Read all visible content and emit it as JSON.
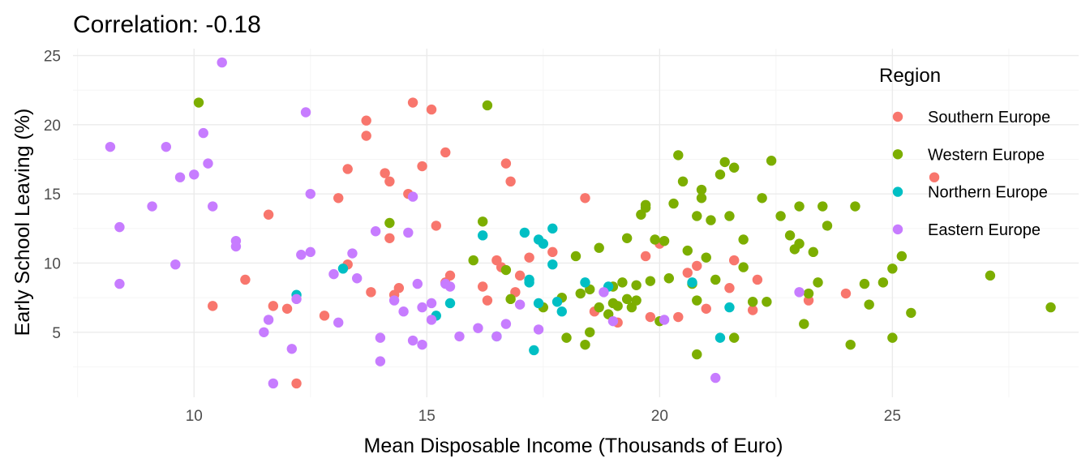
{
  "chart_data": {
    "type": "scatter",
    "title": "Correlation:  -0.18",
    "xlabel": "Mean Disposable Income (Thousands of Euro)",
    "ylabel": "Early School Leaving (%)",
    "xlim": [
      7.4,
      29.0
    ],
    "ylim": [
      0.3,
      25.5
    ],
    "x_ticks": [
      10,
      15,
      20,
      25
    ],
    "y_ticks": [
      5,
      10,
      15,
      20,
      25
    ],
    "grid": true,
    "legend": {
      "title": "Region",
      "position": "right"
    },
    "series": [
      {
        "name": "Southern Europe",
        "color": "#F8766D",
        "points": [
          [
            10.4,
            6.9
          ],
          [
            11.1,
            8.8
          ],
          [
            11.6,
            13.5
          ],
          [
            11.7,
            6.9
          ],
          [
            12.0,
            6.7
          ],
          [
            12.2,
            1.3
          ],
          [
            12.8,
            6.2
          ],
          [
            13.1,
            14.7
          ],
          [
            13.3,
            16.8
          ],
          [
            13.3,
            9.9
          ],
          [
            13.7,
            19.2
          ],
          [
            13.7,
            20.3
          ],
          [
            13.8,
            7.9
          ],
          [
            14.1,
            16.5
          ],
          [
            14.2,
            15.9
          ],
          [
            14.2,
            11.8
          ],
          [
            14.3,
            7.7
          ],
          [
            14.4,
            8.2
          ],
          [
            14.6,
            15.0
          ],
          [
            14.7,
            21.6
          ],
          [
            14.9,
            17.0
          ],
          [
            15.1,
            21.1
          ],
          [
            15.2,
            12.7
          ],
          [
            15.4,
            18.0
          ],
          [
            15.4,
            8.6
          ],
          [
            15.5,
            9.1
          ],
          [
            16.2,
            8.3
          ],
          [
            16.3,
            7.3
          ],
          [
            16.5,
            10.2
          ],
          [
            16.6,
            9.7
          ],
          [
            16.7,
            17.2
          ],
          [
            16.8,
            15.9
          ],
          [
            16.9,
            7.9
          ],
          [
            17.0,
            9.1
          ],
          [
            17.2,
            10.4
          ],
          [
            17.7,
            10.8
          ],
          [
            18.4,
            14.7
          ],
          [
            18.6,
            6.5
          ],
          [
            19.1,
            5.7
          ],
          [
            19.7,
            10.5
          ],
          [
            19.8,
            6.1
          ],
          [
            20.0,
            11.4
          ],
          [
            20.4,
            6.1
          ],
          [
            20.6,
            9.3
          ],
          [
            20.8,
            9.8
          ],
          [
            21.0,
            6.7
          ],
          [
            21.5,
            8.2
          ],
          [
            21.6,
            10.2
          ],
          [
            22.0,
            6.6
          ],
          [
            22.1,
            8.8
          ],
          [
            23.2,
            7.3
          ],
          [
            24.0,
            7.8
          ],
          [
            25.9,
            16.2
          ]
        ]
      },
      {
        "name": "Western Europe",
        "color": "#7CAE00",
        "points": [
          [
            10.1,
            21.6
          ],
          [
            14.2,
            12.9
          ],
          [
            16.3,
            21.4
          ],
          [
            16.0,
            10.2
          ],
          [
            16.2,
            13.0
          ],
          [
            16.7,
            9.5
          ],
          [
            16.8,
            7.4
          ],
          [
            17.5,
            6.8
          ],
          [
            17.9,
            7.5
          ],
          [
            18.0,
            4.6
          ],
          [
            18.2,
            10.5
          ],
          [
            18.3,
            7.8
          ],
          [
            18.4,
            4.1
          ],
          [
            18.5,
            5.0
          ],
          [
            18.5,
            8.1
          ],
          [
            18.7,
            11.1
          ],
          [
            18.7,
            6.8
          ],
          [
            18.9,
            6.3
          ],
          [
            19.0,
            7.1
          ],
          [
            19.0,
            8.3
          ],
          [
            19.1,
            6.9
          ],
          [
            19.2,
            8.6
          ],
          [
            19.3,
            11.8
          ],
          [
            19.3,
            7.4
          ],
          [
            19.4,
            6.8
          ],
          [
            19.5,
            8.4
          ],
          [
            19.5,
            7.3
          ],
          [
            19.6,
            13.5
          ],
          [
            19.7,
            14.2
          ],
          [
            19.7,
            14.0
          ],
          [
            19.8,
            8.7
          ],
          [
            19.9,
            11.7
          ],
          [
            20.0,
            5.8
          ],
          [
            20.1,
            11.6
          ],
          [
            20.2,
            8.9
          ],
          [
            20.3,
            14.3
          ],
          [
            20.4,
            17.8
          ],
          [
            20.5,
            15.9
          ],
          [
            20.6,
            10.9
          ],
          [
            20.7,
            8.5
          ],
          [
            20.8,
            3.4
          ],
          [
            20.8,
            13.4
          ],
          [
            20.8,
            7.3
          ],
          [
            20.9,
            15.3
          ],
          [
            20.9,
            14.7
          ],
          [
            21.0,
            10.4
          ],
          [
            21.1,
            13.1
          ],
          [
            21.2,
            8.8
          ],
          [
            21.3,
            16.4
          ],
          [
            21.4,
            17.3
          ],
          [
            21.5,
            13.4
          ],
          [
            21.6,
            16.9
          ],
          [
            21.6,
            4.6
          ],
          [
            21.8,
            9.7
          ],
          [
            21.8,
            11.7
          ],
          [
            22.0,
            7.2
          ],
          [
            22.2,
            14.7
          ],
          [
            22.3,
            7.2
          ],
          [
            22.4,
            17.4
          ],
          [
            22.6,
            13.4
          ],
          [
            22.8,
            12.0
          ],
          [
            22.9,
            11.0
          ],
          [
            23.0,
            11.4
          ],
          [
            23.0,
            14.1
          ],
          [
            23.1,
            5.6
          ],
          [
            23.2,
            7.8
          ],
          [
            23.3,
            10.8
          ],
          [
            23.4,
            8.6
          ],
          [
            23.5,
            14.1
          ],
          [
            23.6,
            12.7
          ],
          [
            24.1,
            4.1
          ],
          [
            24.2,
            14.1
          ],
          [
            24.4,
            8.5
          ],
          [
            24.5,
            7.0
          ],
          [
            24.8,
            8.6
          ],
          [
            25.0,
            9.6
          ],
          [
            25.0,
            4.6
          ],
          [
            25.2,
            10.5
          ],
          [
            25.4,
            6.4
          ],
          [
            27.1,
            9.1
          ],
          [
            28.4,
            6.8
          ]
        ]
      },
      {
        "name": "Northern Europe",
        "color": "#00BFC4",
        "points": [
          [
            12.2,
            7.7
          ],
          [
            13.2,
            9.6
          ],
          [
            15.2,
            6.2
          ],
          [
            15.5,
            7.1
          ],
          [
            16.2,
            12.0
          ],
          [
            16.5,
            4.7
          ],
          [
            17.1,
            12.2
          ],
          [
            17.2,
            8.8
          ],
          [
            17.2,
            8.6
          ],
          [
            17.3,
            3.7
          ],
          [
            17.4,
            7.1
          ],
          [
            17.4,
            11.7
          ],
          [
            17.5,
            11.4
          ],
          [
            17.7,
            12.5
          ],
          [
            17.7,
            9.9
          ],
          [
            17.8,
            7.2
          ],
          [
            17.9,
            6.5
          ],
          [
            18.4,
            8.6
          ],
          [
            18.9,
            8.3
          ],
          [
            20.7,
            8.6
          ],
          [
            21.3,
            4.6
          ],
          [
            21.5,
            6.8
          ]
        ]
      },
      {
        "name": "Eastern Europe",
        "color": "#C77CFF",
        "points": [
          [
            8.2,
            18.4
          ],
          [
            8.4,
            12.6
          ],
          [
            8.4,
            8.5
          ],
          [
            9.1,
            14.1
          ],
          [
            9.4,
            18.4
          ],
          [
            9.6,
            9.9
          ],
          [
            9.7,
            16.2
          ],
          [
            10.0,
            16.4
          ],
          [
            10.2,
            19.4
          ],
          [
            10.3,
            17.2
          ],
          [
            10.4,
            14.1
          ],
          [
            10.6,
            24.5
          ],
          [
            10.9,
            11.6
          ],
          [
            10.9,
            11.2
          ],
          [
            11.5,
            5.0
          ],
          [
            11.6,
            5.9
          ],
          [
            11.7,
            1.3
          ],
          [
            12.1,
            3.8
          ],
          [
            12.2,
            7.4
          ],
          [
            12.3,
            10.6
          ],
          [
            12.4,
            20.9
          ],
          [
            12.5,
            15.0
          ],
          [
            12.5,
            10.8
          ],
          [
            13.0,
            9.2
          ],
          [
            13.1,
            5.7
          ],
          [
            13.4,
            10.7
          ],
          [
            13.5,
            8.9
          ],
          [
            13.9,
            12.3
          ],
          [
            14.0,
            2.9
          ],
          [
            14.0,
            4.6
          ],
          [
            14.3,
            7.3
          ],
          [
            14.5,
            6.5
          ],
          [
            14.7,
            4.4
          ],
          [
            14.6,
            12.2
          ],
          [
            14.7,
            14.8
          ],
          [
            14.8,
            8.5
          ],
          [
            14.9,
            6.8
          ],
          [
            14.9,
            4.1
          ],
          [
            15.1,
            5.9
          ],
          [
            15.1,
            7.1
          ],
          [
            15.4,
            8.5
          ],
          [
            15.5,
            8.3
          ],
          [
            15.7,
            4.7
          ],
          [
            16.1,
            5.3
          ],
          [
            16.5,
            4.7
          ],
          [
            16.7,
            5.6
          ],
          [
            17.0,
            7.0
          ],
          [
            17.4,
            5.2
          ],
          [
            18.8,
            7.9
          ],
          [
            19.0,
            5.8
          ],
          [
            20.1,
            5.9
          ],
          [
            21.2,
            1.7
          ],
          [
            23.0,
            7.9
          ]
        ]
      }
    ]
  }
}
